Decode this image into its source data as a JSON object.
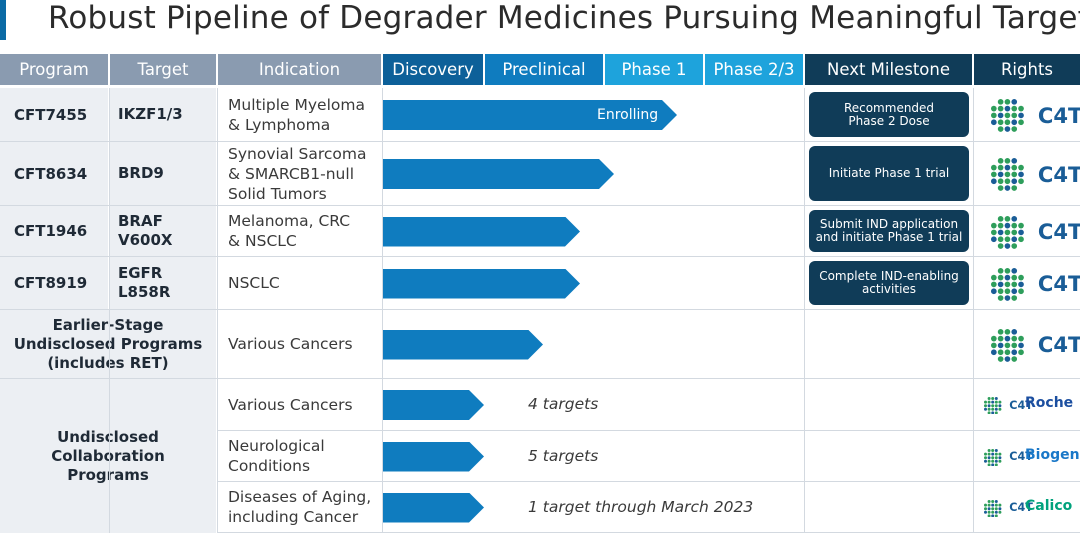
{
  "page": {
    "title": "Robust Pipeline of Degrader Medicines Pursuing Meaningful Targets"
  },
  "headers": {
    "program": "Program",
    "target": "Target",
    "indication": "Indication",
    "discovery": "Discovery",
    "preclinical": "Preclinical",
    "phase1": "Phase 1",
    "phase23": "Phase 2/3",
    "milestone": "Next Milestone",
    "rights": "Rights"
  },
  "rows": [
    {
      "program": "CFT7455",
      "target": "IKZF1/3",
      "indication": "Multiple Myeloma\n& Lymphoma",
      "stage_progress": 0.7,
      "bar_label": "Enrolling",
      "milestone": "Recommended\nPhase 2 Dose",
      "rights": "C4T"
    },
    {
      "program": "CFT8634",
      "target": "BRD9",
      "indication": "Synovial Sarcoma\n& SMARCB1-null\nSolid Tumors",
      "stage_progress": 0.55,
      "milestone": "Initiate Phase 1 trial",
      "rights": "C4T"
    },
    {
      "program": "CFT1946",
      "target": "BRAF\nV600X",
      "indication": "Melanoma, CRC\n& NSCLC",
      "stage_progress": 0.47,
      "milestone": "Submit IND application\nand initiate Phase 1 trial",
      "rights": "C4T"
    },
    {
      "program": "CFT8919",
      "target": "EGFR\nL858R",
      "indication": "NSCLC",
      "stage_progress": 0.47,
      "milestone": "Complete IND-enabling\nactivities",
      "rights": "C4T"
    },
    {
      "program": "Earlier-Stage\nUndisclosed Programs\n(includes RET)",
      "indication": "Various Cancers",
      "stage_progress": 0.38,
      "rights": "C4T"
    }
  ],
  "collab": {
    "program": "Undisclosed\nCollaboration\nPrograms",
    "rows": [
      {
        "indication": "Various Cancers",
        "stage_progress": 0.24,
        "note": "4 targets",
        "logo": "C4T",
        "partner": "Roche",
        "partner_color": "#1c4fa0"
      },
      {
        "indication": "Neurological\nConditions",
        "stage_progress": 0.24,
        "note": "5 targets",
        "logo": "C4T",
        "partner": "Biogen",
        "partner_color": "#1a78c8"
      },
      {
        "indication": "Diseases of Aging,\nincluding Cancer",
        "stage_progress": 0.24,
        "note": "1 target through March 2023",
        "logo": "C4T",
        "partner": "Calico",
        "partner_color": "#00a27c"
      }
    ]
  },
  "colors": {
    "brand_blue": "#1a5d97",
    "dot_green": "#2e9e5b",
    "dot_blue": "#1a5d97",
    "bar_blue": "#0f7cbf"
  }
}
